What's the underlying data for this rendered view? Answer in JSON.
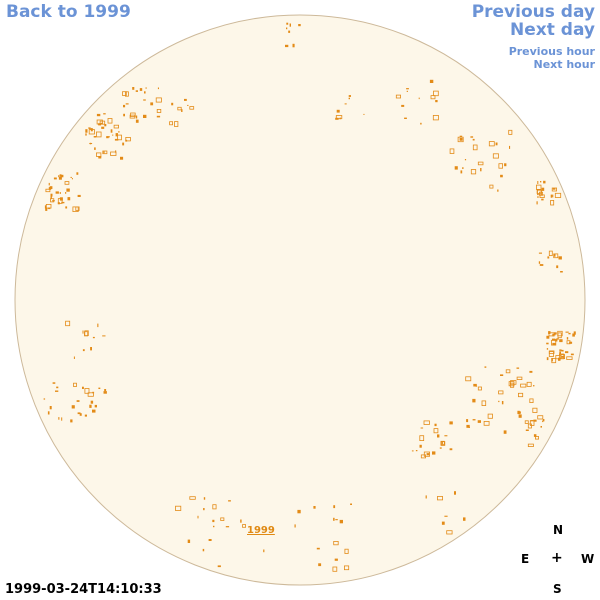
{
  "nav": {
    "back_label": "Back to 1999",
    "previous_day_label": "Previous day",
    "next_day_label": "Next day",
    "previous_hour_label": "Previous hour",
    "next_hour_label": "Next hour"
  },
  "sun": {
    "disk_fill": "#fdf7e9",
    "disk_stroke": "#cdb99a",
    "region_color": "#e38b17"
  },
  "year_link": "1999",
  "timestamp": "1999-03-24T14:10:33",
  "compass": {
    "north": "N",
    "east": "E",
    "center": "+",
    "west": "W",
    "south": "S"
  }
}
